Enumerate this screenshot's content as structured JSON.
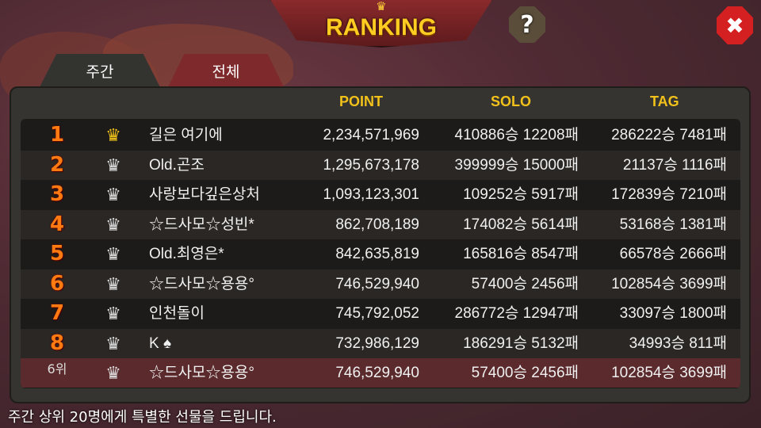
{
  "header": {
    "title": "RANKING",
    "help_icon": "question-icon",
    "close_icon": "close-icon"
  },
  "tabs": [
    {
      "label": "주간",
      "active": true
    },
    {
      "label": "전체",
      "active": false
    }
  ],
  "columns": {
    "point": "POINT",
    "solo": "SOLO",
    "tag": "TAG"
  },
  "rows": [
    {
      "rank": "1",
      "crown": "gold",
      "name": "길은 여기에",
      "point": "2,234,571,969",
      "solo": "410886승 12208패",
      "tag": "286222승 7481패"
    },
    {
      "rank": "2",
      "crown": "silver",
      "name": "Old.곤조",
      "point": "1,295,673,178",
      "solo": "399999승 15000패",
      "tag": "21137승 1116패"
    },
    {
      "rank": "3",
      "crown": "silver",
      "name": "사랑보다깊은상처",
      "point": "1,093,123,301",
      "solo": "109252승 5917패",
      "tag": "172839승 7210패"
    },
    {
      "rank": "4",
      "crown": "silver",
      "name": "☆드사모☆성빈*",
      "point": "862,708,189",
      "solo": "174082승 5614패",
      "tag": "53168승 1381패"
    },
    {
      "rank": "5",
      "crown": "silver",
      "name": "Old.최영은*",
      "point": "842,635,819",
      "solo": "165816승 8547패",
      "tag": "66578승 2666패"
    },
    {
      "rank": "6",
      "crown": "silver",
      "name": "☆드사모☆용용°",
      "point": "746,529,940",
      "solo": "57400승 2456패",
      "tag": "102854승 3699패"
    },
    {
      "rank": "7",
      "crown": "silver",
      "name": "인천돌이",
      "point": "745,792,052",
      "solo": "286772승 12947패",
      "tag": "33097승 1800패"
    },
    {
      "rank": "8",
      "crown": "silver",
      "name": "K ♠",
      "point": "732,986,129",
      "solo": "186291승 5132패",
      "tag": "34993승 811패"
    }
  ],
  "my_row": {
    "rank": "6위",
    "crown": "silver",
    "name": "☆드사모☆용용°",
    "point": "746,529,940",
    "solo": "57400승 2456패",
    "tag": "102854승 3699패"
  },
  "footer": "주간 상위 20명에게 특별한 선물을 드립니다.",
  "colors": {
    "accent": "#f2c21a",
    "rank": "#ff7a10",
    "my_row": "#5a2a2c"
  }
}
